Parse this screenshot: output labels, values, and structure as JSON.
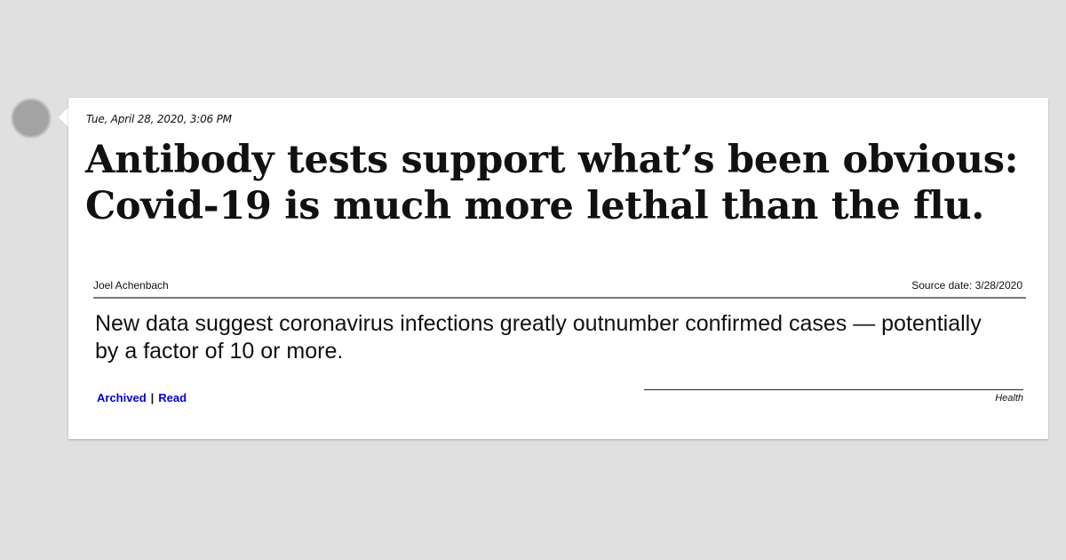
{
  "card": {
    "timestamp": "Tue, April 28, 2020, 3:06 PM",
    "headline": "Antibody tests support what’s been obvious: Covid-19 is much more lethal than the flu.",
    "author": "Joel Achenbach",
    "source_date": "Source date: 3/28/2020",
    "summary": "New data suggest coronavirus infections greatly outnumber confirmed cases — potentially by a factor of 10 or more.",
    "links": {
      "archived": "Archived",
      "separator": "|",
      "read": "Read"
    },
    "category": "Health"
  },
  "colors": {
    "background": "#e0e0e0",
    "card": "#ffffff",
    "link": "#0000e6",
    "avatar": "#a3a3a3"
  }
}
